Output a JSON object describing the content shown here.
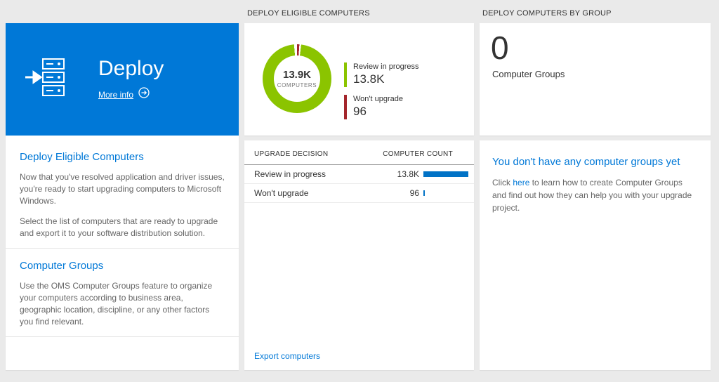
{
  "colors": {
    "accent_blue": "#0078d7",
    "donut_green": "#8bc400",
    "donut_red": "#a4262c",
    "bar_blue": "#0072c6"
  },
  "left": {
    "tile": {
      "title": "Deploy",
      "more_info": "More info"
    },
    "sections": [
      {
        "heading": "Deploy Eligible Computers",
        "paragraphs": [
          "Now that you've resolved application and driver issues, you're ready to start upgrading computers to Microsoft Windows.",
          "Select the list of computers that are ready to upgrade and export it to your software distribution solution."
        ]
      },
      {
        "heading": "Computer Groups",
        "paragraphs": [
          "Use the OMS Computer Groups feature to organize your computers according to business area, geographic location, discipline, or any other factors you find relevant."
        ]
      }
    ]
  },
  "middle": {
    "header": "DEPLOY ELIGIBLE COMPUTERS",
    "donut": {
      "center_value": "13.9K",
      "center_label": "COMPUTERS"
    },
    "legend": [
      {
        "label": "Review in progress",
        "value": "13.8K",
        "color": "#8bc400"
      },
      {
        "label": "Won't upgrade",
        "value": "96",
        "color": "#a4262c"
      }
    ],
    "table": {
      "col1": "UPGRADE DECISION",
      "col2": "COMPUTER COUNT",
      "bar_color": "#0072c6",
      "rows": [
        {
          "label": "Review in progress",
          "value": "13.8K",
          "bar_pct": 100
        },
        {
          "label": "Won't upgrade",
          "value": "96",
          "bar_pct": 3
        }
      ]
    },
    "export_link": "Export computers"
  },
  "right": {
    "header": "DEPLOY COMPUTERS BY GROUP",
    "count": "0",
    "count_label": "Computer Groups",
    "empty": {
      "heading": "You don't have any computer groups yet",
      "text_before": "Click ",
      "link": "here",
      "text_after": " to learn how to create Computer Groups and find out how they can help you with your upgrade project."
    }
  },
  "chart_data": {
    "type": "pie",
    "title": "Deploy Eligible Computers",
    "center_total_display": "13.9K",
    "center_label": "COMPUTERS",
    "slices": [
      {
        "label": "Review in progress",
        "value": 13800,
        "display": "13.8K",
        "color": "#8bc400"
      },
      {
        "label": "Won't upgrade",
        "value": 96,
        "display": "96",
        "color": "#a4262c"
      }
    ],
    "legend_position": "right"
  }
}
